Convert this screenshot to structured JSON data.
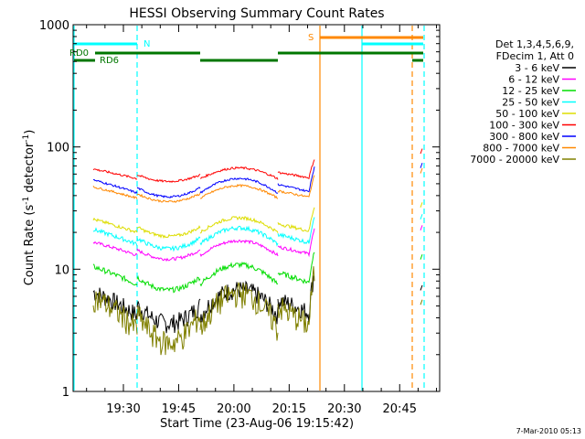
{
  "chart_data": {
    "type": "line",
    "title": "HESSI Observing Summary Count Rates",
    "xlabel": "Start Time (23-Aug-06 19:15:42)",
    "ylabel": "Count Rate (s⁻¹ detector⁻¹)",
    "ylabel_parts": {
      "base": "Count Rate (s",
      "exp1": "-1",
      "mid": " detector",
      "exp2": "-1",
      "end": ")"
    },
    "y_scale": "log",
    "ylim": [
      1,
      1000
    ],
    "xlim_minutes": [
      19.3,
      96.0
    ],
    "x_ticks": [
      {
        "label": "19:30",
        "t": 30.0
      },
      {
        "label": "19:45",
        "t": 45.0
      },
      {
        "label": "20:00",
        "t": 60.0
      },
      {
        "label": "20:15",
        "t": 75.0
      },
      {
        "label": "20:30",
        "t": 90.0
      },
      {
        "label": "20:45",
        "t": 105.0
      }
    ],
    "y_ticks": [
      {
        "label": "1",
        "v": 1
      },
      {
        "label": "10",
        "v": 10
      },
      {
        "label": "100",
        "v": 100
      },
      {
        "label": "1000",
        "v": 1000
      }
    ],
    "legend_header": [
      "Det 1,3,4,5,6,9,",
      "FDecim 1, Att 0"
    ],
    "legend_placement": "right",
    "footer_date": "7-Mar-2010 05:13",
    "flag_labels": {
      "N": "N",
      "S": "S",
      "RD0": "RD0",
      "RD6": "RD6"
    },
    "series": [
      {
        "name": "3 - 6 keV",
        "color": "#000000",
        "level": 4.2,
        "arch": 0.7,
        "noise": 0.18
      },
      {
        "name": "6 - 12 keV",
        "color": "#ff00ff",
        "level": 13.0,
        "arch": 0.35,
        "noise": 0.03
      },
      {
        "name": "12 - 25 keV",
        "color": "#00dd00",
        "level": 7.5,
        "arch": 0.5,
        "noise": 0.05
      },
      {
        "name": "25 - 50 keV",
        "color": "#00ffff",
        "level": 16.0,
        "arch": 0.4,
        "noise": 0.04
      },
      {
        "name": "50 - 100 keV",
        "color": "#dddd00",
        "level": 20.0,
        "arch": 0.35,
        "noise": 0.03
      },
      {
        "name": "100 - 300 keV",
        "color": "#ff0000",
        "level": 55.0,
        "arch": 0.25,
        "noise": 0.02
      },
      {
        "name": "300 - 800 keV",
        "color": "#0000ff",
        "level": 42.0,
        "arch": 0.35,
        "noise": 0.02
      },
      {
        "name": "800 - 7000 keV",
        "color": "#ff8800",
        "level": 38.0,
        "arch": 0.3,
        "noise": 0.02
      },
      {
        "name": "7000 - 20000 keV",
        "color": "#808000",
        "level": 3.2,
        "arch": 1.1,
        "noise": 0.25
      }
    ],
    "data_segments_minutes": [
      [
        19.7,
        29.0
      ],
      [
        29.0,
        44.8
      ],
      [
        46.0,
        65.0
      ],
      [
        66.2,
        81.2
      ]
    ],
    "vertical_markers_minutes": [
      {
        "t": 19.6,
        "color": "#00ffff",
        "style": "solid"
      },
      {
        "t": 28.7,
        "color": "#00ffff",
        "style": "dashed"
      },
      {
        "t": 63.3,
        "color": "#ff8800",
        "style": "solid"
      },
      {
        "t": 70.2,
        "color": "#00ffff",
        "style": "solid"
      },
      {
        "t": 89.0,
        "color": "#ff8800",
        "style": "dashed"
      },
      {
        "t": 93.5,
        "color": "#00ffff",
        "style": "dashed"
      }
    ]
  }
}
